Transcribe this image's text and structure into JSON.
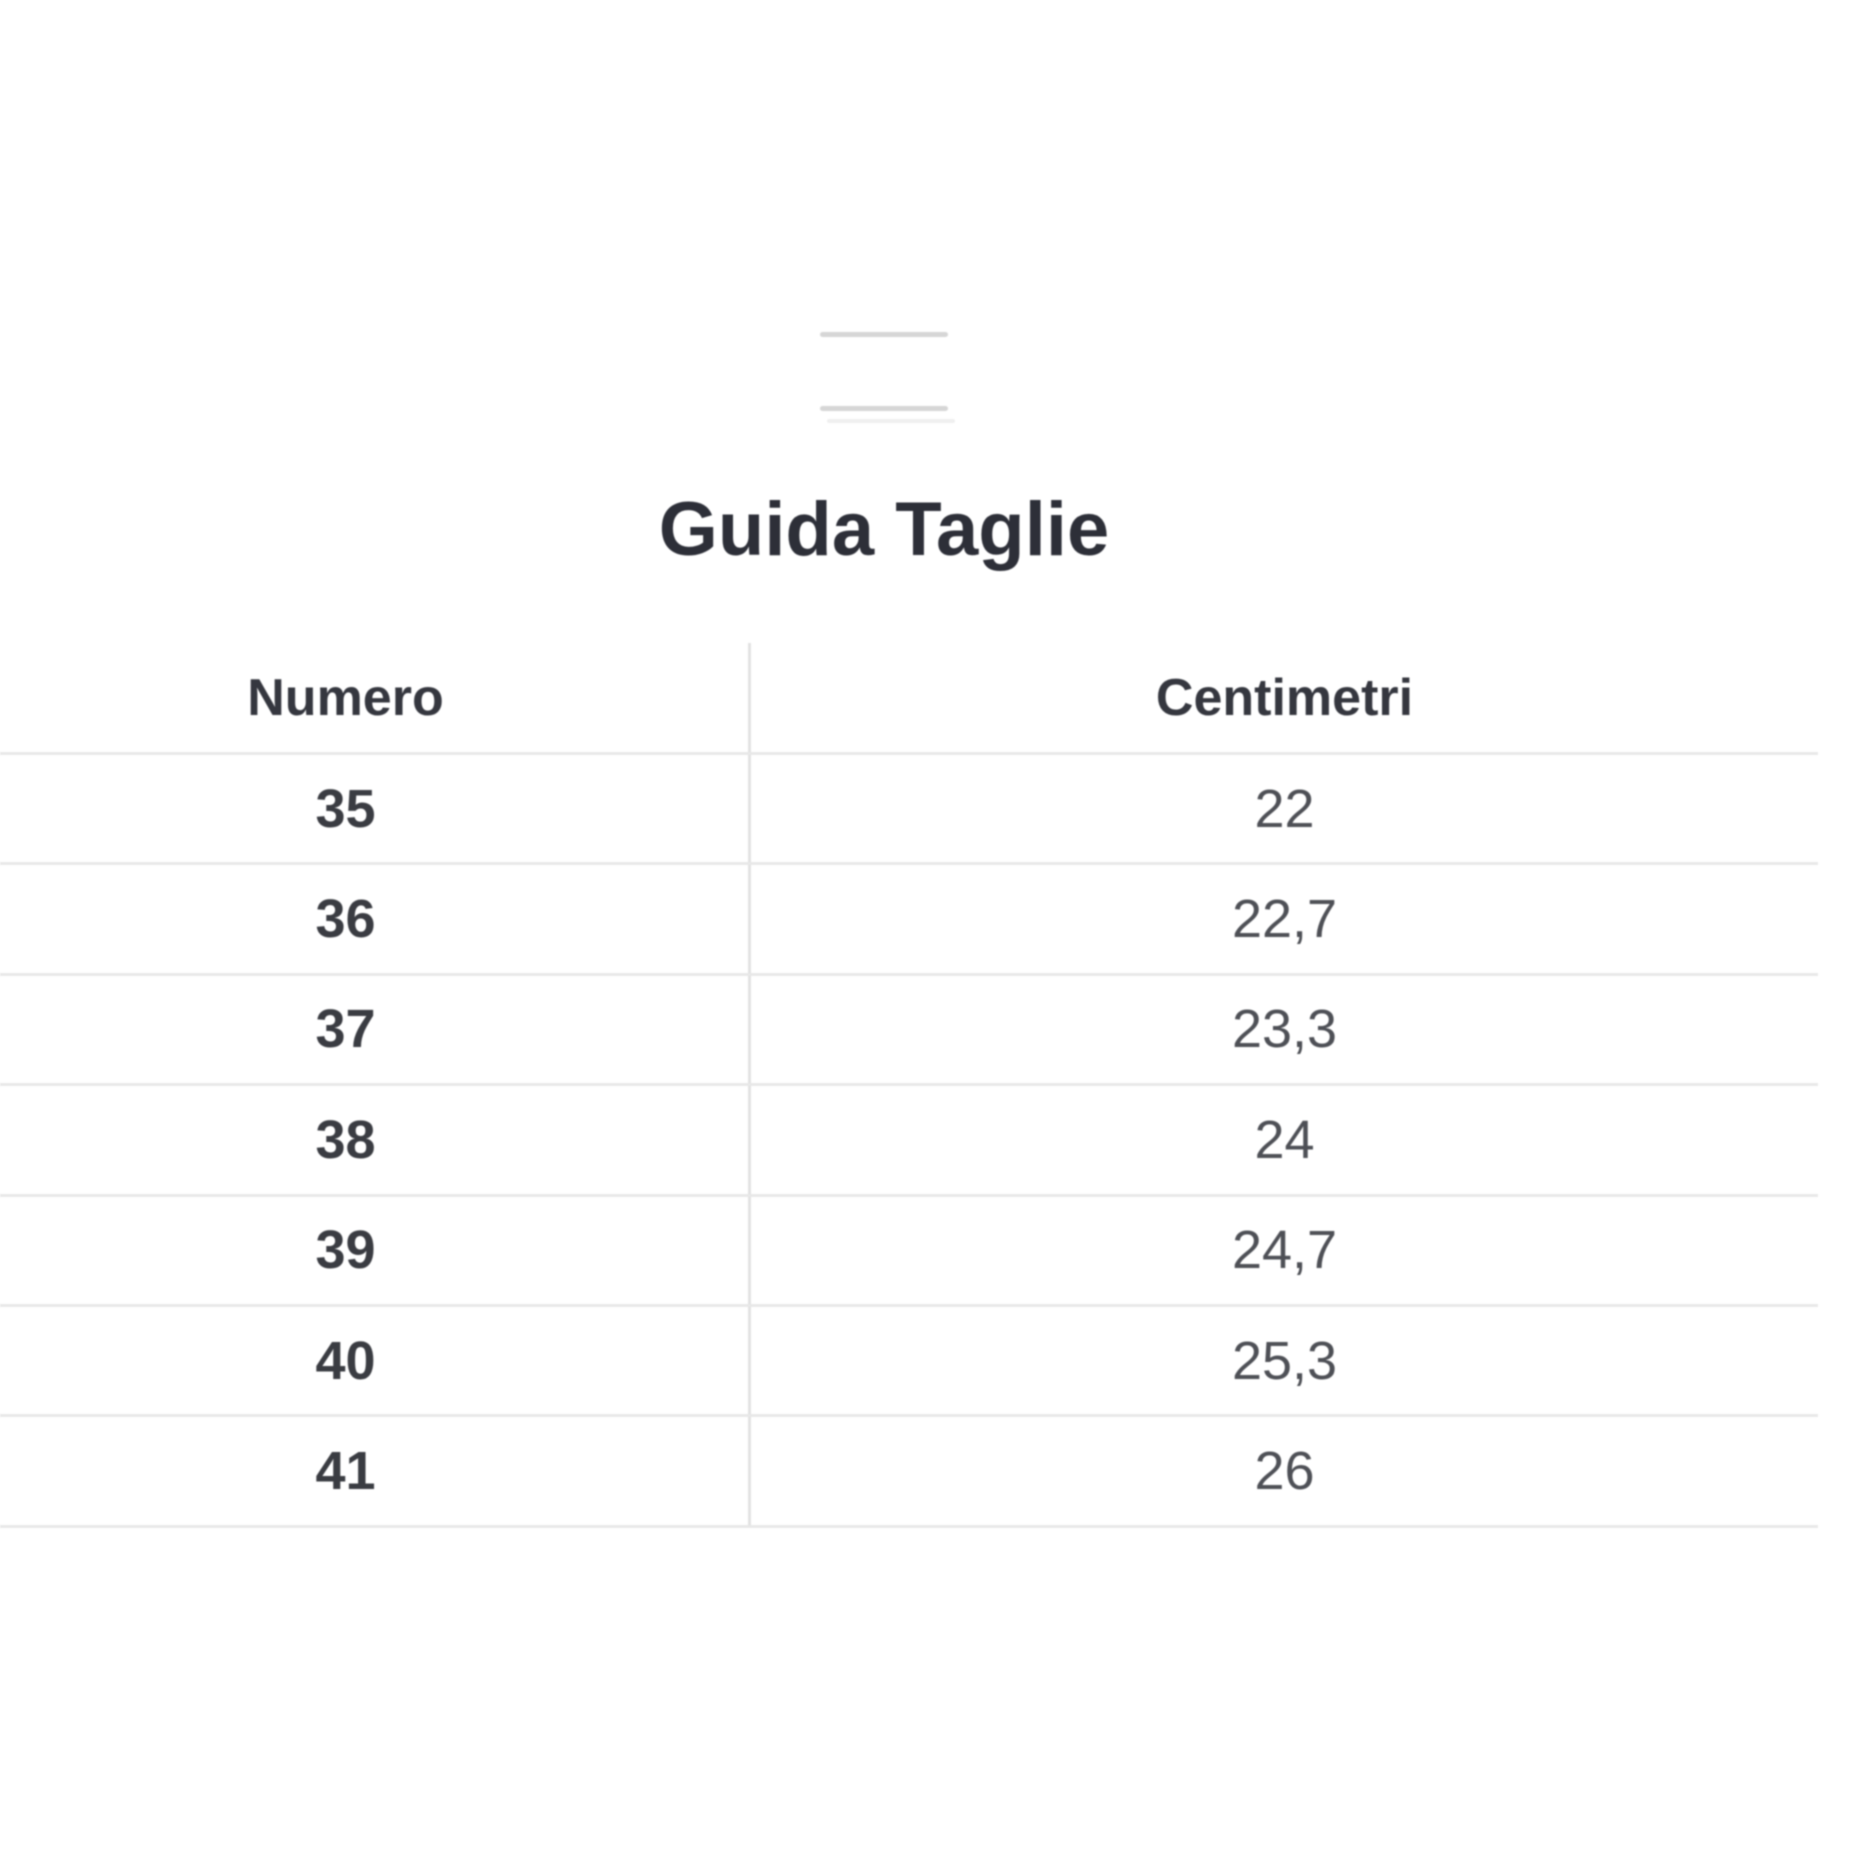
{
  "modal": {
    "drag_handle_line_count": 2
  },
  "size_guide": {
    "title": "Guida Taglie",
    "columns": [
      "Numero",
      "Centimetri"
    ],
    "rows": [
      {
        "numero": "35",
        "centimetri": "22"
      },
      {
        "numero": "36",
        "centimetri": "22,7"
      },
      {
        "numero": "37",
        "centimetri": "23,3"
      },
      {
        "numero": "38",
        "centimetri": "24"
      },
      {
        "numero": "39",
        "centimetri": "24,7"
      },
      {
        "numero": "40",
        "centimetri": "25,3"
      },
      {
        "numero": "41",
        "centimetri": "26"
      }
    ]
  },
  "colors": {
    "background": "#ffffff",
    "title_text": "#2d2f38",
    "header_text": "#35373f",
    "numero_text": "#3a3c42",
    "centimetri_text": "#4e5056",
    "row_border": "#e8e8e8",
    "column_divider": "#e2e2e2",
    "drag_handle_line": "#d6d6d6"
  }
}
